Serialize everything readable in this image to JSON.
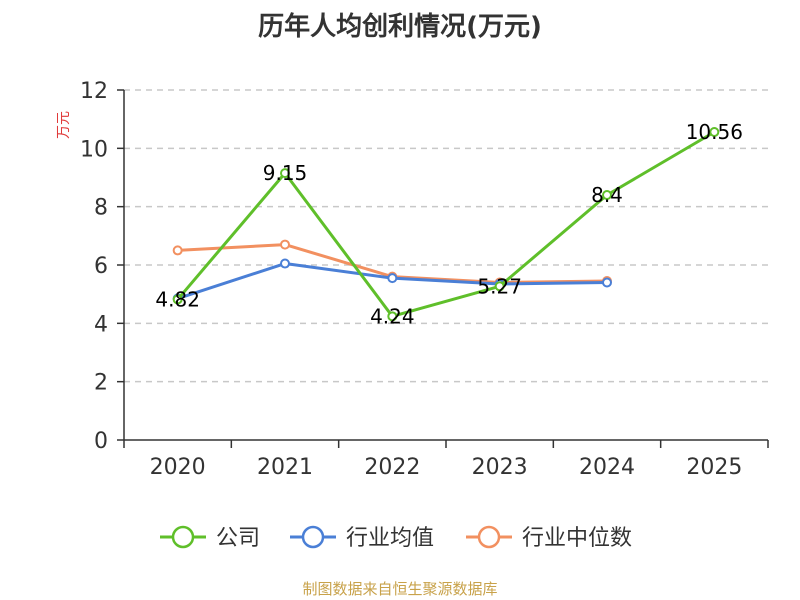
{
  "title": "历年人均创利情况(万元)",
  "source": "制图数据来自恒生聚源数据库",
  "chart_data": {
    "type": "line",
    "title": "历年人均创利情况(万元)",
    "ylabel": "万元",
    "xlabel": "",
    "categories": [
      "2020",
      "2021",
      "2022",
      "2023",
      "2024",
      "2025"
    ],
    "ylim": [
      0,
      12
    ],
    "yticks": [
      0,
      2,
      4,
      6,
      8,
      10,
      12
    ],
    "grid": true,
    "legend_position": "bottom",
    "series": [
      {
        "name": "公司",
        "color": "#5fbf2a",
        "values": [
          4.82,
          9.15,
          4.24,
          5.27,
          8.4,
          10.56
        ],
        "labels": [
          "4.82",
          "9.15",
          "4.24",
          "5.27",
          "8.4",
          "10.56"
        ]
      },
      {
        "name": "行业均值",
        "color": "#4a7fd6",
        "values": [
          4.85,
          6.05,
          5.55,
          5.35,
          5.4,
          null
        ]
      },
      {
        "name": "行业中位数",
        "color": "#f29060",
        "values": [
          6.5,
          6.7,
          5.6,
          5.4,
          5.45,
          null
        ]
      }
    ]
  }
}
